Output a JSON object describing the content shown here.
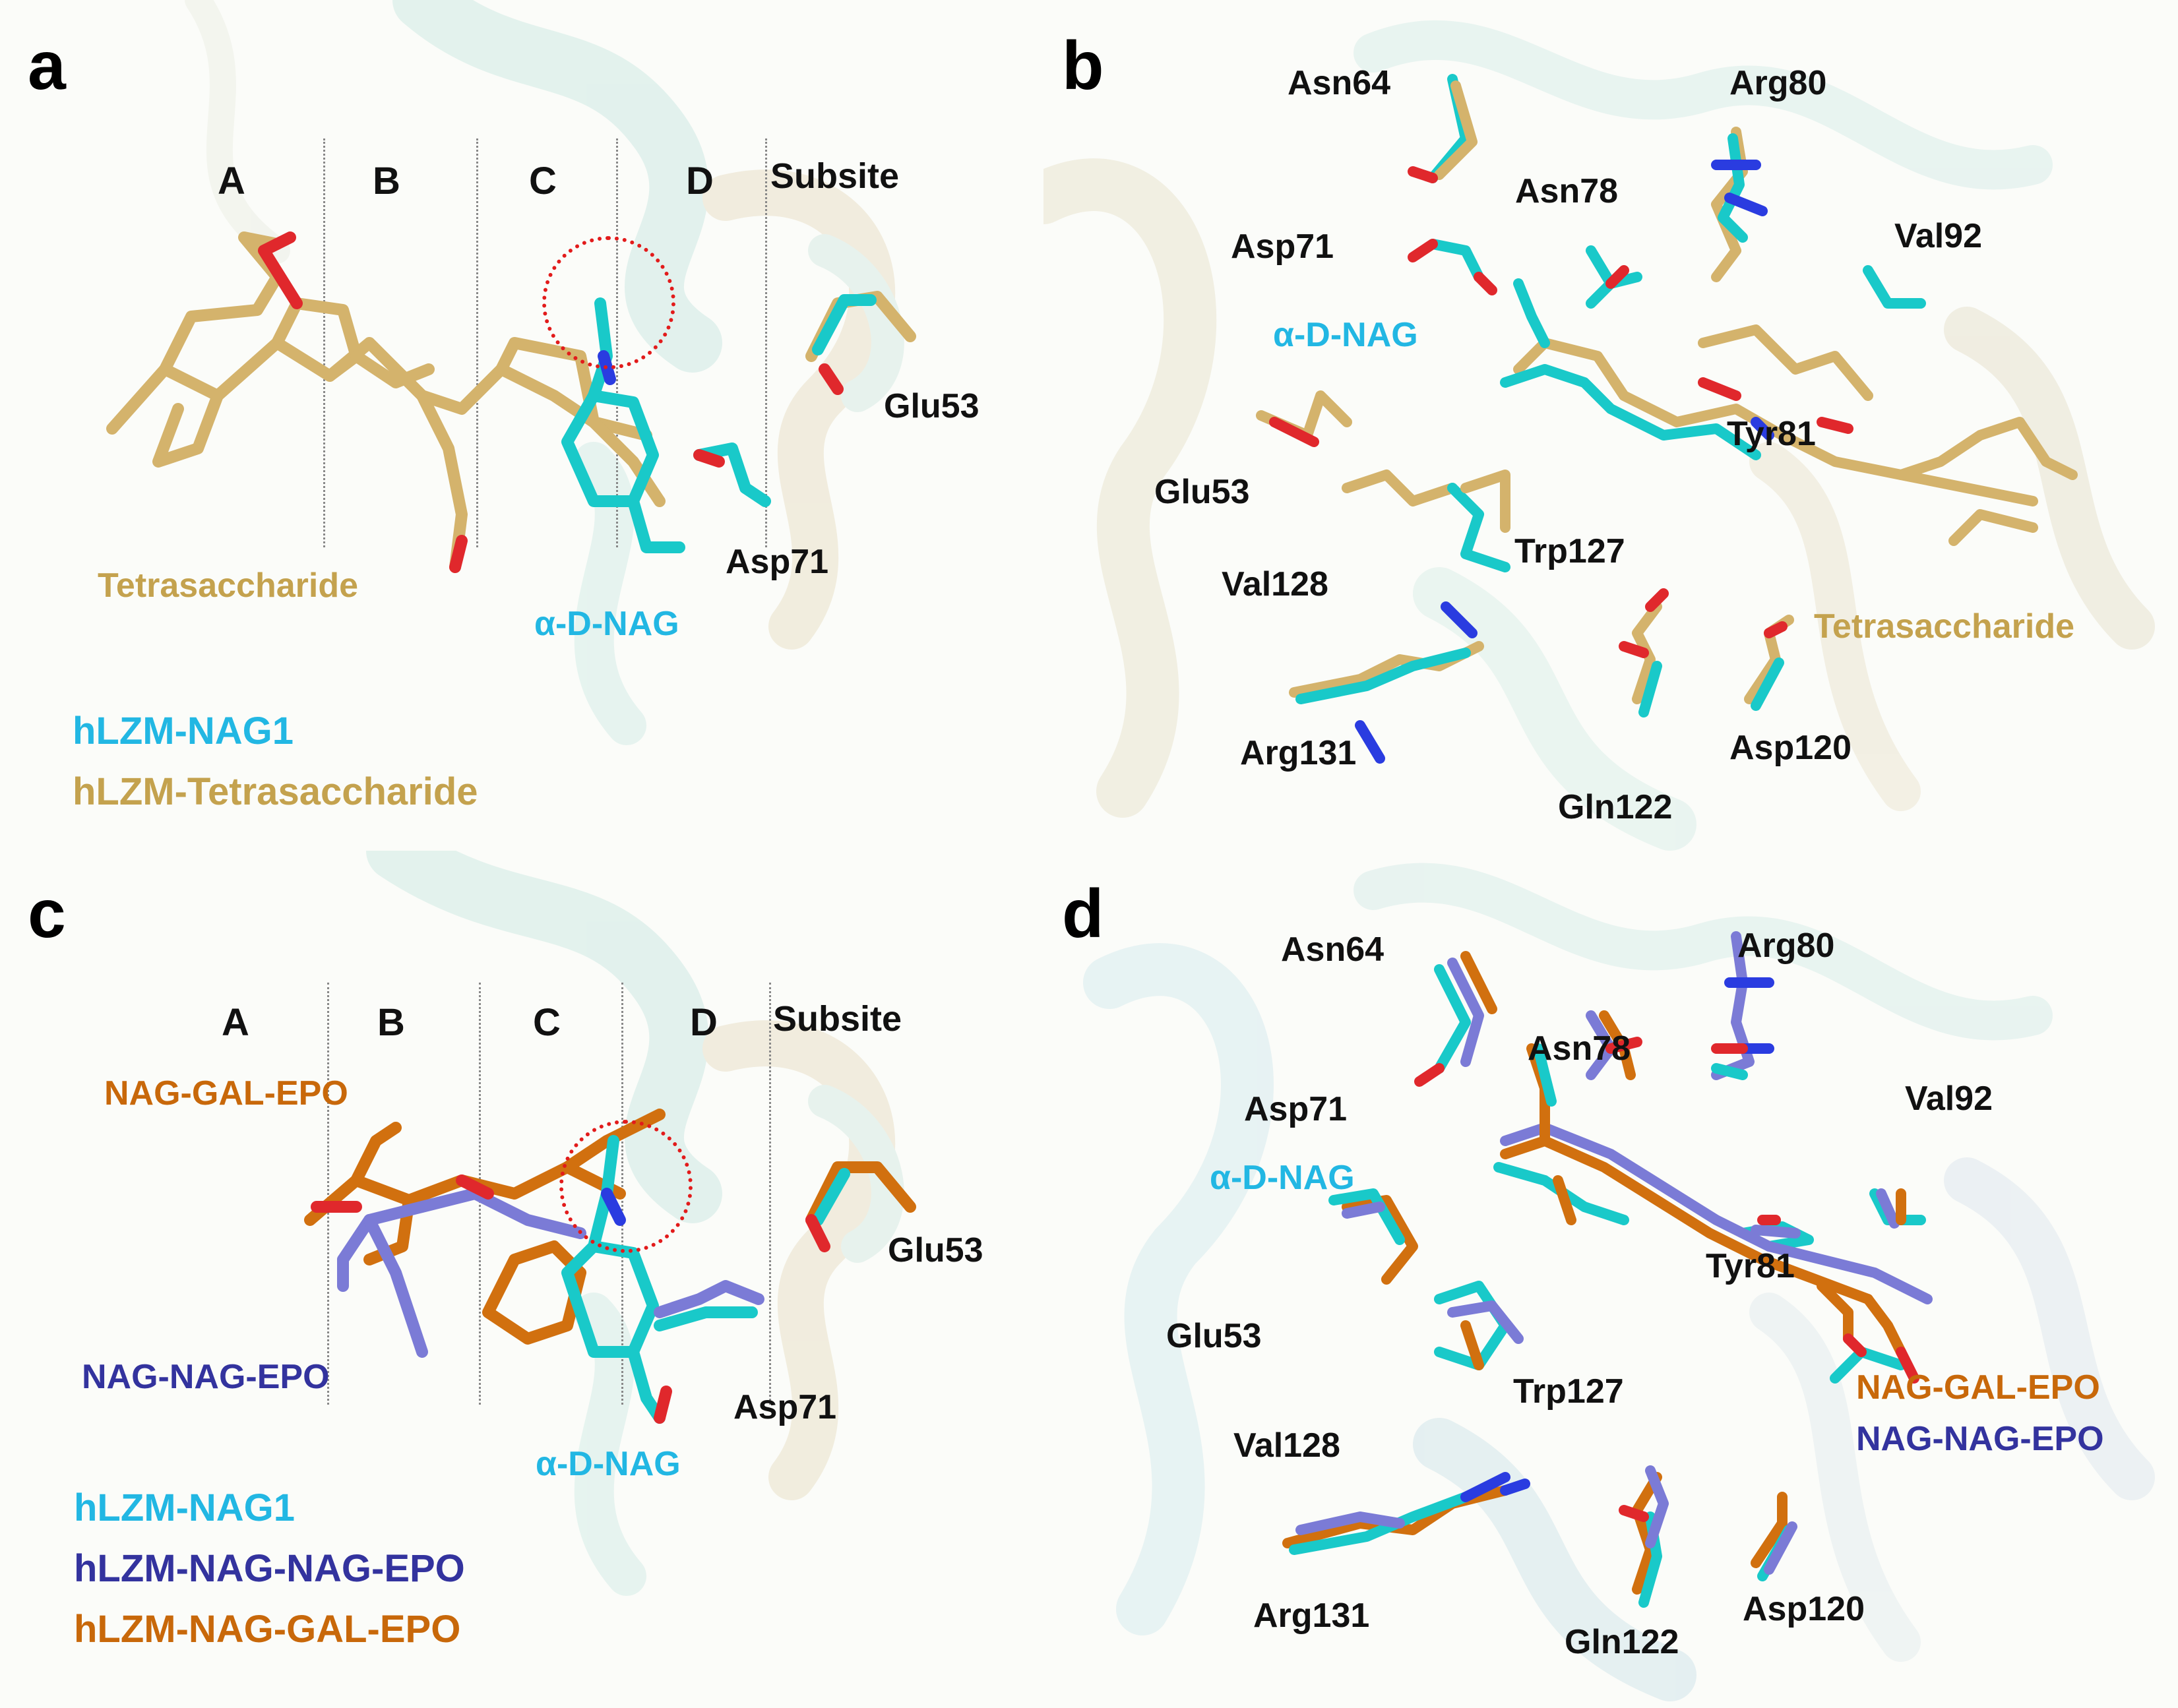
{
  "colors": {
    "tan": "#d4b36c",
    "cyan": "#19c9c9",
    "navy": "#3a3aa8",
    "slate": "#7b7bd6",
    "orange": "#d1700f",
    "oxygen": "#e0282c",
    "nitrogen": "#2a3ce0",
    "highlight": "#e21b1b"
  },
  "panel_a": {
    "label": "a",
    "subsites": [
      "A",
      "B",
      "C",
      "D"
    ],
    "subsite_word": "Subsite",
    "residues": [
      "Glu53",
      "Asp71"
    ],
    "ligand_labels": {
      "tetra": "Tetrasaccharide",
      "nag": "α-D-NAG"
    },
    "legend": [
      "hLZM-NAG1",
      "hLZM-Tetrasaccharide"
    ]
  },
  "panel_b": {
    "label": "b",
    "residues": [
      "Asn64",
      "Arg80",
      "Asn78",
      "Asp71",
      "Val92",
      "Tyr81",
      "Glu53",
      "Trp127",
      "Val128",
      "Arg131",
      "Gln122",
      "Asp120"
    ],
    "ligand_labels": {
      "nag": "α-D-NAG",
      "tetra": "Tetrasaccharide"
    }
  },
  "panel_c": {
    "label": "c",
    "subsites": [
      "A",
      "B",
      "C",
      "D"
    ],
    "subsite_word": "Subsite",
    "residues": [
      "Glu53",
      "Asp71"
    ],
    "ligand_labels": {
      "gal": "NAG-GAL-EPO",
      "nagnag": "NAG-NAG-EPO",
      "nag": "α-D-NAG"
    },
    "legend": [
      "hLZM-NAG1",
      "hLZM-NAG-NAG-EPO",
      "hLZM-NAG-GAL-EPO"
    ]
  },
  "panel_d": {
    "label": "d",
    "residues": [
      "Asn64",
      "Arg80",
      "Asn78",
      "Asp71",
      "Val92",
      "Tyr81",
      "Glu53",
      "Trp127",
      "Val128",
      "Arg131",
      "Gln122",
      "Asp120"
    ],
    "ligand_labels": {
      "nag": "α-D-NAG",
      "gal": "NAG-GAL-EPO",
      "nagnag": "NAG-NAG-EPO"
    }
  }
}
